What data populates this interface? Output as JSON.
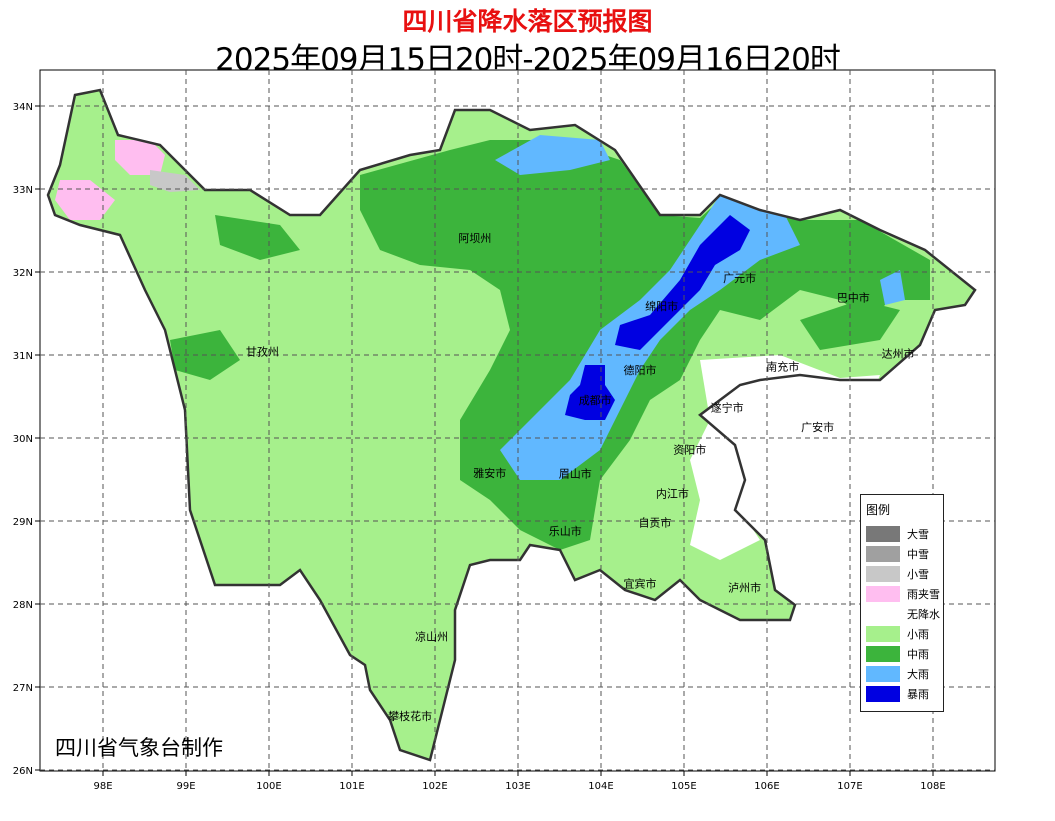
{
  "title": "四川省降水落区预报图",
  "subtitle": "2025年09月15日20时-2025年09月16日20时",
  "credit": "四川省气象台制作",
  "axes": {
    "lon_ticks": [
      "98E",
      "99E",
      "100E",
      "101E",
      "102E",
      "103E",
      "104E",
      "105E",
      "106E",
      "107E",
      "108E"
    ],
    "lon_values": [
      98,
      99,
      100,
      101,
      102,
      103,
      104,
      105,
      106,
      107,
      108
    ],
    "lat_ticks": [
      "34N",
      "33N",
      "32N",
      "31N",
      "30N",
      "29N",
      "28N",
      "27N",
      "26N"
    ],
    "lat_values": [
      34,
      33,
      32,
      31,
      30,
      29,
      28,
      27,
      26
    ],
    "grid": "dashed"
  },
  "legend": {
    "title": "图例",
    "items": [
      {
        "label": "大雪",
        "color": "#787878"
      },
      {
        "label": "中雪",
        "color": "#a0a0a0"
      },
      {
        "label": "小雪",
        "color": "#c8c8c8"
      },
      {
        "label": "雨夹雪",
        "color": "#ffbef0"
      },
      {
        "label": "无降水",
        "color": "#ffffff"
      },
      {
        "label": "小雨",
        "color": "#a6f08c"
      },
      {
        "label": "中雨",
        "color": "#3cb43c"
      },
      {
        "label": "大雨",
        "color": "#61b8ff"
      },
      {
        "label": "暴雨",
        "color": "#0000e1"
      }
    ]
  },
  "cities": [
    {
      "name": "阿坝州",
      "lon": 102.48,
      "lat": 32.41
    },
    {
      "name": "甘孜州",
      "lon": 99.92,
      "lat": 31.04
    },
    {
      "name": "凉山州",
      "lon": 101.96,
      "lat": 27.61
    },
    {
      "name": "攀枝花市",
      "lon": 101.7,
      "lat": 26.65
    },
    {
      "name": "雅安市",
      "lon": 102.66,
      "lat": 29.58
    },
    {
      "name": "眉山市",
      "lon": 103.69,
      "lat": 29.57
    },
    {
      "name": "乐山市",
      "lon": 103.57,
      "lat": 28.88
    },
    {
      "name": "成都市",
      "lon": 103.93,
      "lat": 30.46
    },
    {
      "name": "德阳市",
      "lon": 104.47,
      "lat": 30.82
    },
    {
      "name": "绵阳市",
      "lon": 104.73,
      "lat": 31.59
    },
    {
      "name": "广元市",
      "lon": 105.67,
      "lat": 31.93
    },
    {
      "name": "巴中市",
      "lon": 107.04,
      "lat": 31.69
    },
    {
      "name": "达州市",
      "lon": 107.58,
      "lat": 31.02
    },
    {
      "name": "南充市",
      "lon": 106.19,
      "lat": 30.86
    },
    {
      "name": "遂宁市",
      "lon": 105.52,
      "lat": 30.37
    },
    {
      "name": "广安市",
      "lon": 106.61,
      "lat": 30.13
    },
    {
      "name": "资阳市",
      "lon": 105.07,
      "lat": 29.86
    },
    {
      "name": "内江市",
      "lon": 104.86,
      "lat": 29.33
    },
    {
      "name": "自贡市",
      "lon": 104.65,
      "lat": 28.98
    },
    {
      "name": "宜宾市",
      "lon": 104.47,
      "lat": 28.25
    },
    {
      "name": "泸州市",
      "lon": 105.73,
      "lat": 28.2
    }
  ]
}
